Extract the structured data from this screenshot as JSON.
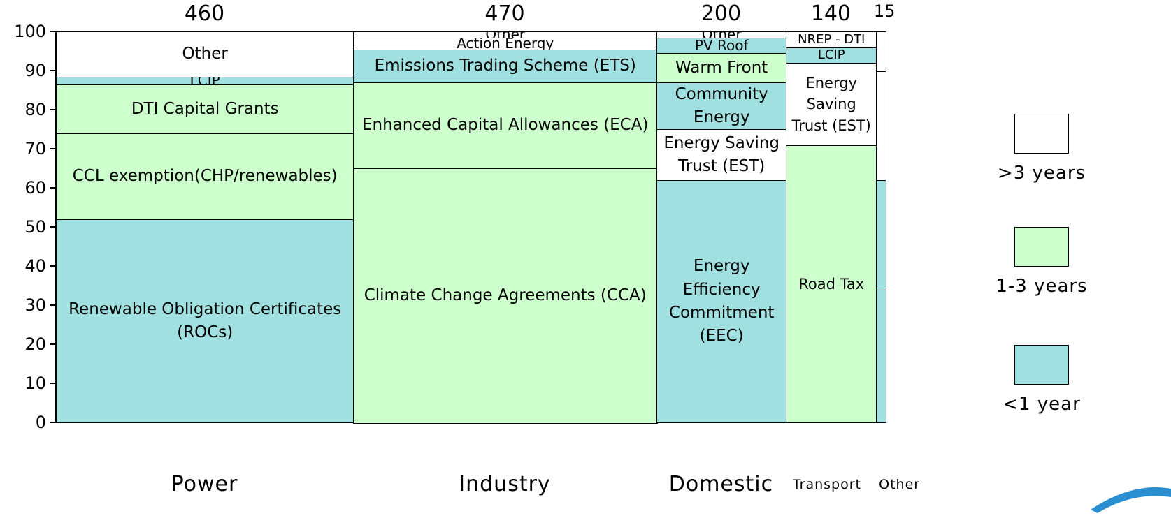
{
  "chart_data": {
    "type": "marimekko",
    "ylim": [
      0,
      100
    ],
    "yticks": [
      0,
      10,
      20,
      30,
      40,
      50,
      60,
      70,
      80,
      90,
      100
    ],
    "legend": [
      {
        "name": ">3 years",
        "color": "#ffffff"
      },
      {
        "name": "1-3 years",
        "color": "#ccffcc"
      },
      {
        "name": "<1 year",
        "color": "#a0e0e0"
      }
    ],
    "columns": [
      {
        "name": "Power",
        "width": 460,
        "segments": [
          {
            "label": "Renewable Obligation Certificates (ROCs)",
            "value": 52,
            "term": 2
          },
          {
            "label": "CCL exemption(CHP/renewables)",
            "value": 22,
            "term": 1
          },
          {
            "label": "DTI Capital Grants",
            "value": 12.5,
            "term": 1
          },
          {
            "label": "LCIP",
            "value": 2,
            "term": 2
          },
          {
            "label": "Other",
            "value": 11.5,
            "term": 0
          }
        ]
      },
      {
        "name": "Industry",
        "width": 470,
        "segments": [
          {
            "label": "Climate Change Agreements (CCA)",
            "value": 65,
            "term": 1
          },
          {
            "label": "Enhanced Capital Allowances (ECA)",
            "value": 22,
            "term": 1
          },
          {
            "label": "Emissions Trading Scheme (ETS)",
            "value": 8.5,
            "term": 2
          },
          {
            "label": "Action Energy",
            "value": 3,
            "term": 0
          },
          {
            "label": "Other",
            "value": 1.5,
            "term": 0
          }
        ]
      },
      {
        "name": "Domestic",
        "width": 200,
        "segments": [
          {
            "label": "Energy Efficiency Commitment (EEC)",
            "value": 62,
            "term": 2
          },
          {
            "label": "Energy Saving Trust (EST)",
            "value": 13,
            "term": 0
          },
          {
            "label": "Community Energy",
            "value": 12,
            "term": 2
          },
          {
            "label": "Warm Front",
            "value": 7.5,
            "term": 1
          },
          {
            "label": "PV Roof",
            "value": 4,
            "term": 2
          },
          {
            "label": "Other",
            "value": 1.5,
            "term": 0
          }
        ]
      },
      {
        "name": "Transport",
        "width": 140,
        "segments": [
          {
            "label": "Road Tax",
            "value": 71,
            "term": 1
          },
          {
            "label": "Energy Saving Trust (EST)",
            "value": 21,
            "term": 0
          },
          {
            "label": "LCIP",
            "value": 4,
            "term": 2
          },
          {
            "label": "NREP - DTI",
            "value": 4,
            "term": 0
          }
        ]
      },
      {
        "name": "Other",
        "width": 15,
        "segments": [
          {
            "value": 34,
            "term": 2
          },
          {
            "value": 28,
            "term": 2
          },
          {
            "value": 28,
            "term": 0
          },
          {
            "value": 10,
            "term": 0
          }
        ]
      }
    ]
  }
}
